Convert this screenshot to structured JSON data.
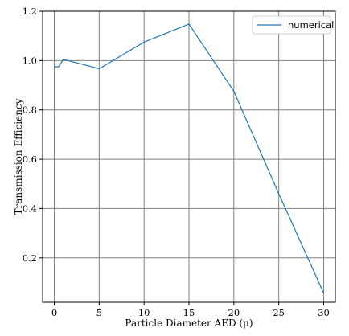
{
  "chart_data": {
    "type": "line",
    "xlabel": "Particle Diameter AED (μ)",
    "ylabel": "Transmission Efficiency",
    "xlim": [
      -1.3,
      31.3
    ],
    "ylim": [
      0.02,
      1.2
    ],
    "xticks": [
      0,
      5,
      10,
      15,
      20,
      25,
      30
    ],
    "yticks": [
      0.2,
      0.4,
      0.6,
      0.8,
      1.0,
      1.2
    ],
    "xtick_labels": [
      "0",
      "5",
      "10",
      "15",
      "20",
      "25",
      "30"
    ],
    "ytick_labels": [
      "0.2",
      "0.4",
      "0.6",
      "0.8",
      "1.0",
      "1.2"
    ],
    "grid": true,
    "legend": "top-right",
    "series": [
      {
        "name": "numerical",
        "color": "#1f77b4",
        "x": [
          0.1,
          0.5,
          1.0,
          5.0,
          10.0,
          15.0,
          20.0,
          25.0,
          30.0
        ],
        "y": [
          0.975,
          0.975,
          1.005,
          0.967,
          1.075,
          1.148,
          0.875,
          0.46,
          0.057
        ]
      }
    ]
  }
}
